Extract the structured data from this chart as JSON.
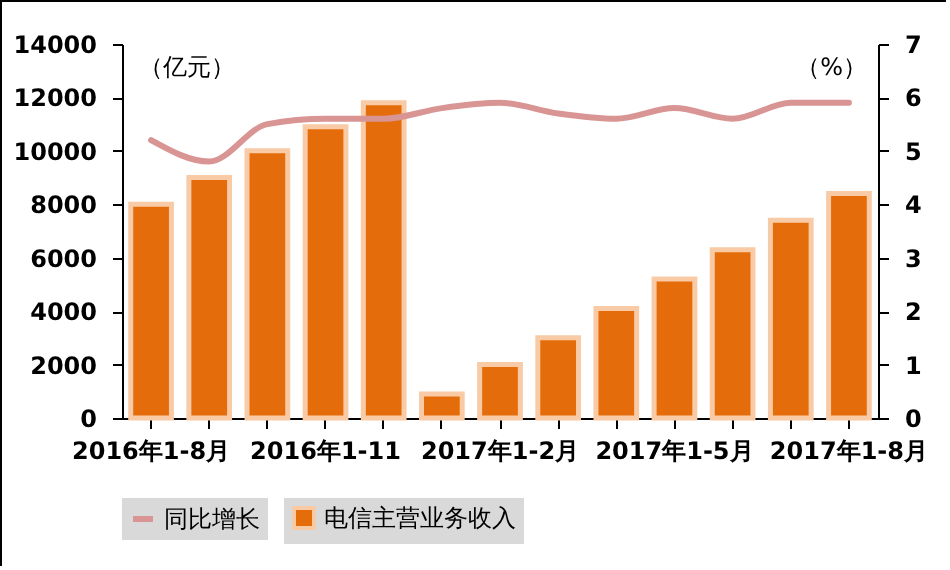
{
  "chart_data": {
    "type": "bar",
    "categories": [
      "2016年1-8月",
      null,
      null,
      "2016年1-11",
      null,
      null,
      "2017年1-2月",
      null,
      null,
      "2017年1-5月",
      null,
      null,
      "2017年1-8月"
    ],
    "ylabel": "（亿元）",
    "y2label": "（%）",
    "ylim": [
      0,
      14000
    ],
    "yticks": [
      0,
      2000,
      4000,
      6000,
      8000,
      10000,
      12000,
      14000
    ],
    "y2lim": [
      0,
      7
    ],
    "y2ticks": [
      0,
      1,
      2,
      3,
      4,
      5,
      6,
      7
    ],
    "legend": "bottom",
    "series": [
      {
        "name": "电信主营业务收入",
        "color": "#e46c0a",
        "values": [
          8000,
          9000,
          10000,
          10900,
          11800,
          900,
          2000,
          3000,
          4100,
          5200,
          6300,
          7400,
          8400
        ]
      },
      {
        "name": "同比增长",
        "type": "line",
        "axis": "y2",
        "color": "#d99594",
        "values": [
          5.2,
          4.8,
          5.5,
          5.6,
          5.6,
          5.8,
          5.9,
          5.7,
          5.6,
          5.8,
          5.6,
          5.9,
          5.9
        ]
      }
    ]
  }
}
